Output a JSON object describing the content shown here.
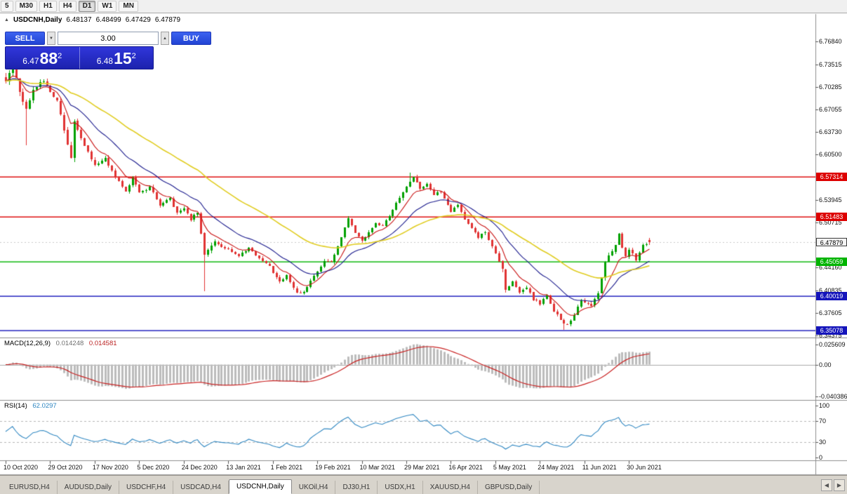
{
  "toolbar": {
    "timeframes": [
      "5",
      "M30",
      "H1",
      "H4",
      "D1",
      "W1",
      "MN"
    ],
    "active_timeframe": "D1"
  },
  "chart_header": {
    "collapse_icon": "▲",
    "symbol": "USDCNH,Daily",
    "open": "6.48137",
    "high": "6.48499",
    "low": "6.47429",
    "close": "6.47879"
  },
  "trade_panel": {
    "sell_label": "SELL",
    "buy_label": "BUY",
    "lot_size": "3.00",
    "spin_down_icon": "▼",
    "spin_up_icon": "▲",
    "sell_price": {
      "prefix": "6.47",
      "big": "88",
      "sup": "2"
    },
    "buy_price": {
      "prefix": "6.48",
      "big": "15",
      "sup": "2"
    }
  },
  "price_axis": {
    "labels": [
      "6.76840",
      "6.73515",
      "6.70285",
      "6.67055",
      "6.63730",
      "6.60500",
      "6.53945",
      "6.50715",
      "6.44160",
      "6.40835",
      "6.37605",
      "6.34375"
    ],
    "current_price": "6.47879"
  },
  "macd_panel": {
    "label": "MACD(12,26,9)",
    "value_main": "0.014248",
    "value_signal": "0.014581",
    "axis_labels": [
      "0.025609",
      "0.00",
      "-0.040386"
    ]
  },
  "rsi_panel": {
    "label": "RSI(14)",
    "value": "62.0297",
    "axis_labels": [
      "100",
      "70",
      "30",
      "0"
    ]
  },
  "date_axis": [
    "10 Oct 2020",
    "29 Oct 2020",
    "17 Nov 2020",
    "5 Dec 2020",
    "24 Dec 2020",
    "13 Jan 2021",
    "1 Feb 2021",
    "19 Feb 2021",
    "10 Mar 2021",
    "29 Mar 2021",
    "16 Apr 2021",
    "5 May 2021",
    "24 May 2021",
    "11 Jun 2021",
    "30 Jun 2021"
  ],
  "tabs": {
    "items": [
      "EURUSD,H4",
      "AUDUSD,Daily",
      "USDCHF,H4",
      "USDCAD,H4",
      "USDCNH,Daily",
      "UKOil,H4",
      "DJ30,H1",
      "USDX,H1",
      "XAUUSD,H4",
      "GBPUSD,Daily"
    ],
    "active": "USDCNH,Daily",
    "scroll_left_icon": "◀",
    "scroll_right_icon": "▶"
  },
  "chart_data": {
    "type": "candlestick",
    "symbol": "USDCNH",
    "timeframe": "Daily",
    "title": "USDCNH,Daily",
    "ohlc_current": {
      "open": 6.48137,
      "high": 6.48499,
      "low": 6.47429,
      "close": 6.47879
    },
    "visible_candles": 189,
    "candles_per_date_tick": 13,
    "x_range_dates": [
      "10 Oct 2020",
      "30 Jun 2021"
    ],
    "price_axis_range": [
      6.3407,
      6.7836
    ],
    "price_anchors": [
      [
        0,
        6.715,
        0.016
      ],
      [
        2,
        6.735,
        0.014
      ],
      [
        4,
        6.696,
        0.014
      ],
      [
        6,
        6.671,
        0.014
      ],
      [
        8,
        6.7,
        0.011
      ],
      [
        11,
        6.712,
        0.01
      ],
      [
        13,
        6.695,
        0.01
      ],
      [
        15,
        6.682,
        0.011
      ],
      [
        17,
        6.641,
        0.013
      ],
      [
        19,
        6.598,
        0.014
      ],
      [
        20,
        6.652,
        0.013
      ],
      [
        23,
        6.618,
        0.011
      ],
      [
        26,
        6.589,
        0.01
      ],
      [
        29,
        6.601,
        0.009
      ],
      [
        32,
        6.571,
        0.009
      ],
      [
        35,
        6.553,
        0.008
      ],
      [
        37,
        6.571,
        0.008
      ],
      [
        39,
        6.549,
        0.008
      ],
      [
        42,
        6.558,
        0.008
      ],
      [
        45,
        6.531,
        0.008
      ],
      [
        48,
        6.541,
        0.007
      ],
      [
        50,
        6.521,
        0.007
      ],
      [
        52,
        6.528,
        0.007
      ],
      [
        54,
        6.511,
        0.007
      ],
      [
        56,
        6.521,
        0.007
      ],
      [
        58,
        6.461,
        0.012
      ],
      [
        61,
        6.478,
        0.008
      ],
      [
        65,
        6.468,
        0.006
      ],
      [
        68,
        6.459,
        0.006
      ],
      [
        71,
        6.47,
        0.006
      ],
      [
        74,
        6.456,
        0.006
      ],
      [
        77,
        6.443,
        0.007
      ],
      [
        80,
        6.421,
        0.008
      ],
      [
        82,
        6.432,
        0.007
      ],
      [
        84,
        6.411,
        0.008
      ],
      [
        86,
        6.403,
        0.008
      ],
      [
        88,
        6.414,
        0.007
      ],
      [
        91,
        6.436,
        0.007
      ],
      [
        93,
        6.452,
        0.007
      ],
      [
        95,
        6.449,
        0.007
      ],
      [
        97,
        6.471,
        0.008
      ],
      [
        100,
        6.514,
        0.009
      ],
      [
        102,
        6.493,
        0.008
      ],
      [
        104,
        6.479,
        0.007
      ],
      [
        106,
        6.492,
        0.007
      ],
      [
        108,
        6.507,
        0.007
      ],
      [
        110,
        6.501,
        0.007
      ],
      [
        112,
        6.516,
        0.007
      ],
      [
        114,
        6.536,
        0.008
      ],
      [
        117,
        6.559,
        0.008
      ],
      [
        119,
        6.571,
        0.009
      ],
      [
        121,
        6.556,
        0.008
      ],
      [
        123,
        6.564,
        0.008
      ],
      [
        125,
        6.546,
        0.008
      ],
      [
        127,
        6.552,
        0.007
      ],
      [
        130,
        6.523,
        0.008
      ],
      [
        132,
        6.531,
        0.007
      ],
      [
        134,
        6.511,
        0.007
      ],
      [
        136,
        6.499,
        0.007
      ],
      [
        138,
        6.486,
        0.007
      ],
      [
        140,
        6.493,
        0.007
      ],
      [
        143,
        6.463,
        0.008
      ],
      [
        145,
        6.441,
        0.011
      ],
      [
        146,
        6.409,
        0.01
      ],
      [
        148,
        6.423,
        0.008
      ],
      [
        150,
        6.406,
        0.008
      ],
      [
        152,
        6.414,
        0.008
      ],
      [
        154,
        6.396,
        0.008
      ],
      [
        156,
        6.389,
        0.008
      ],
      [
        158,
        6.4,
        0.008
      ],
      [
        160,
        6.379,
        0.008
      ],
      [
        162,
        6.366,
        0.008
      ],
      [
        164,
        6.359,
        0.008
      ],
      [
        166,
        6.374,
        0.008
      ],
      [
        168,
        6.394,
        0.009
      ],
      [
        171,
        6.386,
        0.009
      ],
      [
        173,
        6.405,
        0.01
      ],
      [
        175,
        6.451,
        0.011
      ],
      [
        177,
        6.464,
        0.009
      ],
      [
        179,
        6.489,
        0.009
      ],
      [
        181,
        6.456,
        0.009
      ],
      [
        182,
        6.469,
        0.008
      ],
      [
        184,
        6.453,
        0.008
      ],
      [
        186,
        6.473,
        0.007
      ],
      [
        188,
        6.47879,
        0.007
      ]
    ],
    "wick_events": [
      {
        "i": 2,
        "high": 6.749
      },
      {
        "i": 6,
        "low": 6.618
      },
      {
        "i": 58,
        "low": 6.408
      },
      {
        "i": 118,
        "high": 6.579
      },
      {
        "i": 163,
        "low": 6.352
      }
    ],
    "horizontal_levels": [
      {
        "price": 6.57314,
        "label": "6.57314",
        "color": "#DD0000"
      },
      {
        "price": 6.51483,
        "label": "6.51483",
        "color": "#DD0000"
      },
      {
        "price": 6.45059,
        "label": "6.45059",
        "color": "#00B400"
      },
      {
        "price": 6.40019,
        "label": "6.40019",
        "color": "#1515BB"
      },
      {
        "price": 6.35078,
        "label": "6.35078",
        "color": "#1515BB"
      }
    ],
    "moving_averages": [
      {
        "period": 8,
        "color": "#C81414"
      },
      {
        "period": 20,
        "color": "#1A1A8C"
      },
      {
        "period": 50,
        "color": "#E0CC20"
      }
    ],
    "indicators": {
      "macd": {
        "fast": 12,
        "slow": 26,
        "signal": 9,
        "current_main": 0.014248,
        "current_signal": 0.014581,
        "axis_max": 0.025609,
        "axis_min": -0.040386,
        "histogram_color": "#BCBCBC",
        "signal_color": "#C82020",
        "zero_line_color": "#A8A8A8"
      },
      "rsi": {
        "period": 14,
        "current": 62.0297,
        "upper_level": 70,
        "lower_level": 30,
        "line_color": "#2E86C1"
      }
    },
    "candle_colors": {
      "up": "#00A000",
      "down": "#E03232"
    },
    "current_price": 6.47879
  }
}
